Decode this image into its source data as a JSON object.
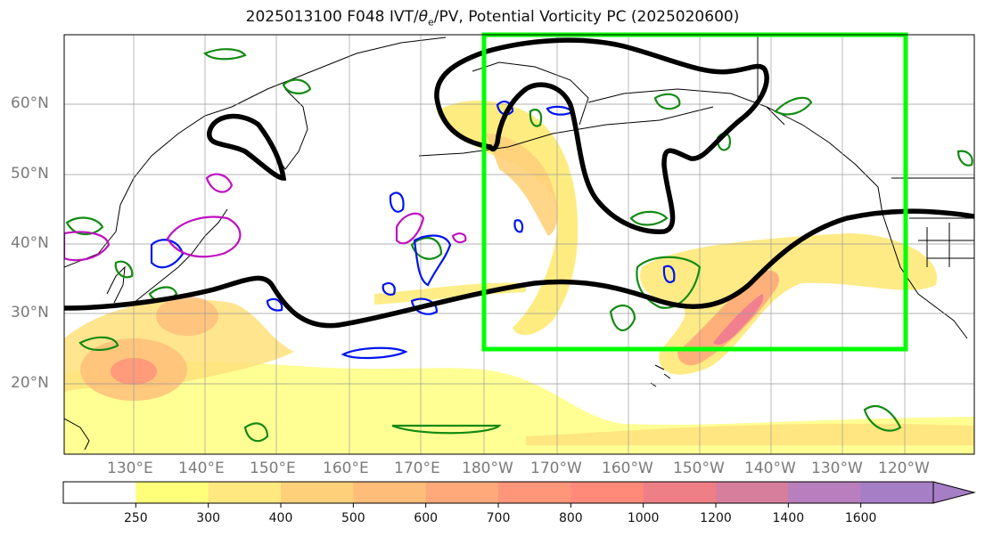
{
  "title": {
    "prefix": "2025013100 F048 IVT/",
    "theta": "θ",
    "theta_sub": "e",
    "suffix": "/PV, Potential Vorticity PC (2025020600)"
  },
  "lat_labels": [
    "60°N",
    "50°N",
    "40°N",
    "30°N",
    "20°N"
  ],
  "lon_labels": [
    "130°E",
    "140°E",
    "150°E",
    "160°E",
    "170°E",
    "180°W",
    "170°W",
    "160°W",
    "150°W",
    "140°W",
    "130°W",
    "120°W"
  ],
  "colorbar": {
    "ticks": [
      "250",
      "300",
      "400",
      "500",
      "600",
      "700",
      "800",
      "1000",
      "1200",
      "1400",
      "1600"
    ],
    "colors": [
      "#ffffff",
      "#ffff7a",
      "#ffe880",
      "#ffd07a",
      "#ffbd7a",
      "#ffa97a",
      "#ff967a",
      "#ff8a7a",
      "#ee7f86",
      "#d77e9c",
      "#b87ebd",
      "#a67ec6"
    ]
  },
  "colors": {
    "box": "#00ff00",
    "contour": "#000000",
    "pv_pos": "#138a13",
    "pv_neg": "#0015ee",
    "pv_mag": "#c010c0",
    "coast": "#000000",
    "grid": "#9a9a9a"
  },
  "map_region": {
    "lon_range": [
      "120°E",
      "115°W"
    ],
    "lat_range": [
      "10°N",
      "70°N"
    ]
  },
  "highlight_box": {
    "lon": [
      "180°W",
      "120°W"
    ],
    "lat": [
      "25°N",
      "70°N"
    ]
  }
}
